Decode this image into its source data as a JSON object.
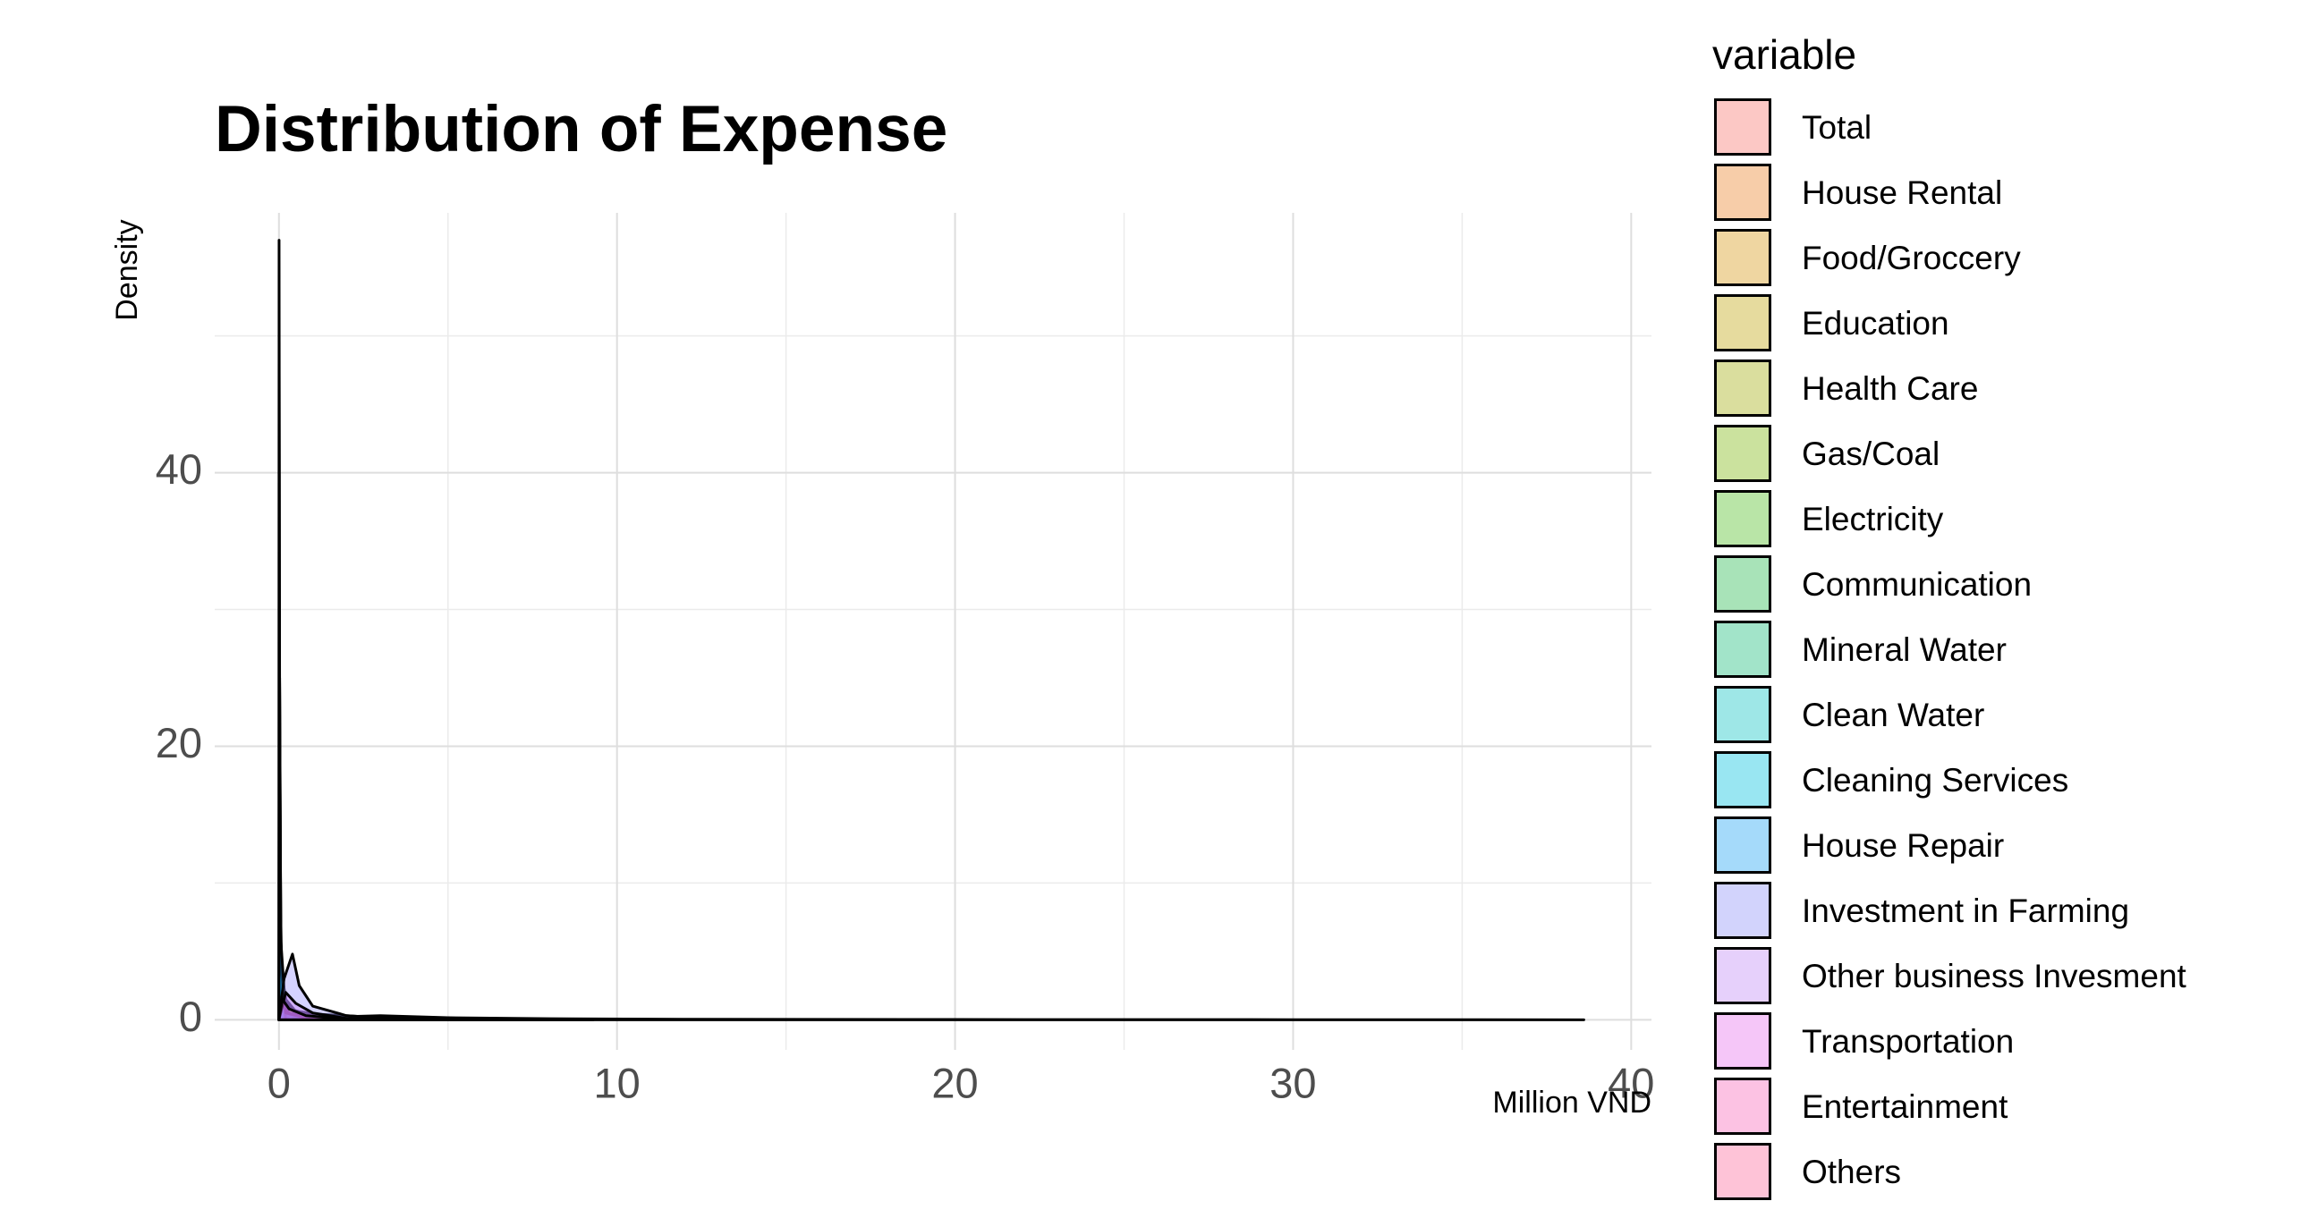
{
  "chart_data": {
    "type": "area",
    "title": "Distribution of Expense",
    "xlabel": "Million VND",
    "ylabel": "Density",
    "xlim": [
      -1.9,
      40.6
    ],
    "ylim": [
      -2.2,
      59.0
    ],
    "x_ticks": [
      0,
      10,
      20,
      30,
      40
    ],
    "y_ticks": [
      0,
      20,
      40
    ],
    "grid": true,
    "legend_position": "right",
    "legend_title": "variable",
    "series": [
      {
        "name": "Total",
        "color": "#F8766D",
        "points": [
          [
            0,
            0
          ],
          [
            1.5,
            0.2
          ],
          [
            3,
            0.3
          ],
          [
            5,
            0.15
          ],
          [
            8,
            0.08
          ],
          [
            12,
            0.04
          ],
          [
            20,
            0.02
          ],
          [
            30,
            0.01
          ],
          [
            38.6,
            0
          ]
        ]
      },
      {
        "name": "House Rental",
        "color": "#EA8331",
        "points": [
          [
            0,
            0
          ],
          [
            0.1,
            1.0
          ],
          [
            0.3,
            0.2
          ],
          [
            2,
            0.05
          ],
          [
            9.3,
            0
          ]
        ]
      },
      {
        "name": "Food/Groccery",
        "color": "#D89000",
        "points": [
          [
            0,
            0
          ],
          [
            0.3,
            0.8
          ],
          [
            0.6,
            0.6
          ],
          [
            1.2,
            0.4
          ],
          [
            2,
            0.3
          ],
          [
            3,
            0.15
          ],
          [
            5,
            0.05
          ],
          [
            8,
            0
          ]
        ]
      },
      {
        "name": "Education",
        "color": "#C09B00",
        "points": [
          [
            0,
            0
          ],
          [
            0.2,
            1.5
          ],
          [
            0.5,
            0.6
          ],
          [
            1,
            0.3
          ],
          [
            2,
            0.1
          ],
          [
            4,
            0
          ]
        ]
      },
      {
        "name": "Health Care",
        "color": "#A3A500",
        "points": [
          [
            0,
            0
          ],
          [
            0.1,
            2.0
          ],
          [
            0.3,
            0.8
          ],
          [
            1,
            0.2
          ],
          [
            3,
            0
          ]
        ]
      },
      {
        "name": "Gas/Coal",
        "color": "#7CAE00",
        "points": [
          [
            0,
            0
          ],
          [
            0.05,
            5.5
          ],
          [
            0.15,
            2.0
          ],
          [
            0.3,
            0.5
          ],
          [
            1,
            0
          ]
        ]
      },
      {
        "name": "Electricity",
        "color": "#39B600",
        "points": [
          [
            0,
            0
          ],
          [
            0.08,
            3.5
          ],
          [
            0.2,
            1.5
          ],
          [
            0.5,
            0.3
          ],
          [
            1,
            0
          ]
        ]
      },
      {
        "name": "Communication",
        "color": "#00BB4E",
        "points": [
          [
            0,
            0
          ],
          [
            0.05,
            6.0
          ],
          [
            0.12,
            2.0
          ],
          [
            0.3,
            0.3
          ],
          [
            0.8,
            0
          ]
        ]
      },
      {
        "name": "Mineral Water",
        "color": "#00BF7D",
        "points": [
          [
            0,
            0
          ],
          [
            0.02,
            25.0
          ],
          [
            0.05,
            8.0
          ],
          [
            0.1,
            1.0
          ],
          [
            0.3,
            0
          ]
        ]
      },
      {
        "name": "Clean Water",
        "color": "#00C1A3",
        "points": [
          [
            0,
            0
          ],
          [
            0.01,
            30.0
          ],
          [
            0.03,
            10.0
          ],
          [
            0.08,
            2.0
          ],
          [
            0.2,
            0
          ]
        ]
      },
      {
        "name": "Cleaning Services",
        "color": "#00BFC4",
        "points": [
          [
            0,
            0
          ],
          [
            0.005,
            48.0
          ],
          [
            0.02,
            20.0
          ],
          [
            0.05,
            3.0
          ],
          [
            0.15,
            0
          ]
        ]
      },
      {
        "name": "House Repair",
        "color": "#00BAE0",
        "points": [
          [
            0,
            0
          ],
          [
            0.02,
            20.0
          ],
          [
            0.06,
            5.0
          ],
          [
            0.2,
            0.5
          ],
          [
            1.5,
            0
          ]
        ]
      },
      {
        "name": "Investment in Farming",
        "color": "#00B0F6",
        "points": [
          [
            0,
            0
          ],
          [
            0.004,
            57.0
          ],
          [
            0.02,
            25.0
          ],
          [
            0.06,
            4.0
          ],
          [
            0.2,
            0
          ]
        ]
      },
      {
        "name": "Other business Invesment",
        "color": "#35A2FF",
        "points": [
          [
            0,
            0
          ],
          [
            0.01,
            30.0
          ],
          [
            0.05,
            6.0
          ],
          [
            0.2,
            0.5
          ],
          [
            1,
            0
          ]
        ]
      },
      {
        "name": "Transportation",
        "color": "#9590FF",
        "points": [
          [
            0,
            0
          ],
          [
            0.15,
            3.0
          ],
          [
            0.4,
            4.8
          ],
          [
            0.6,
            2.5
          ],
          [
            1,
            1.0
          ],
          [
            2,
            0.3
          ],
          [
            4,
            0
          ]
        ]
      },
      {
        "name": "Entertainment",
        "color": "#C77CFF",
        "points": [
          [
            0,
            0
          ],
          [
            0.2,
            2.0
          ],
          [
            0.5,
            1.2
          ],
          [
            1,
            0.5
          ],
          [
            2,
            0.1
          ],
          [
            3.5,
            0
          ]
        ]
      },
      {
        "name": "Others",
        "color": "#E76BF3",
        "points": [
          [
            0,
            0
          ],
          [
            0.1,
            1.5
          ],
          [
            0.3,
            0.8
          ],
          [
            0.8,
            0.3
          ],
          [
            2,
            0.05
          ],
          [
            4,
            0
          ]
        ]
      }
    ]
  },
  "legend_swatch_colors": [
    "#FCC8C5",
    "#F7CDA9",
    "#EFD6A1",
    "#E6DB9E",
    "#DADE9E",
    "#CBE29E",
    "#B9E5A7",
    "#A8E3B8",
    "#A2E4C9",
    "#9EE7E7",
    "#99E6F2",
    "#A5DAFA",
    "#D2D3FC",
    "#E6D0FB",
    "#F5C6F8",
    "#FCC2E3",
    "#FEC3D7"
  ]
}
